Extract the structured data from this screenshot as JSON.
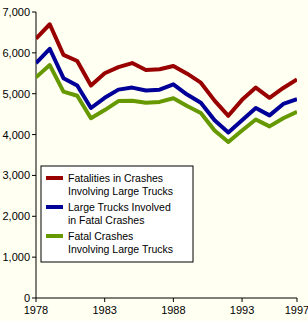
{
  "chart_data": {
    "type": "line",
    "x": [
      1978,
      1979,
      1980,
      1981,
      1982,
      1983,
      1984,
      1985,
      1986,
      1987,
      1988,
      1989,
      1990,
      1991,
      1992,
      1993,
      1994,
      1995,
      1996,
      1997
    ],
    "series": [
      {
        "name": "Fatalities in Crashes Involving Large Trucks",
        "color": "#990000",
        "values": [
          6350,
          6700,
          5950,
          5800,
          5200,
          5500,
          5650,
          5750,
          5580,
          5600,
          5680,
          5490,
          5270,
          4830,
          4460,
          4850,
          5150,
          4900,
          5140,
          5350
        ]
      },
      {
        "name": "Large Trucks Involved in Fatal Crashes",
        "color": "#000099",
        "values": [
          5750,
          6100,
          5380,
          5200,
          4650,
          4900,
          5100,
          5150,
          5080,
          5100,
          5230,
          4980,
          4780,
          4350,
          4050,
          4350,
          4650,
          4470,
          4750,
          4870
        ]
      },
      {
        "name": "Fatal Crashes Involving Large Trucks",
        "color": "#669900",
        "values": [
          5400,
          5700,
          5050,
          4950,
          4400,
          4600,
          4820,
          4830,
          4780,
          4800,
          4890,
          4700,
          4530,
          4100,
          3820,
          4100,
          4370,
          4200,
          4400,
          4560
        ]
      }
    ],
    "xlim": [
      1978,
      1997
    ],
    "xticks": [
      1978,
      1983,
      1988,
      1993,
      1997
    ],
    "ylim": [
      0,
      7000
    ],
    "yticks": [
      0,
      {
        "value": 1000,
        "label": "1,000"
      },
      {
        "value": 2000,
        "label": "2,000"
      },
      {
        "value": 3000,
        "label": "3,000"
      },
      {
        "value": 4000,
        "label": "4,000"
      },
      {
        "value": 5000,
        "label": "5,000"
      },
      {
        "value": 6000,
        "label": "6,000"
      },
      {
        "value": 7000,
        "label": "7,000"
      }
    ],
    "grid": false,
    "legend": "lower left"
  }
}
